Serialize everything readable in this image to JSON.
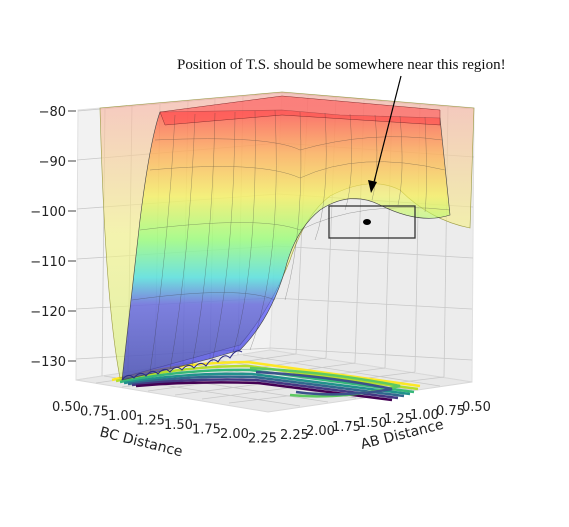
{
  "chart_data": {
    "type": "surface3d",
    "title": "",
    "annotation": "Position of T.S. should be somewhere near this region!",
    "xlabel": "AB Distance",
    "ylabel": "BC Distance",
    "zlabel": "",
    "x_ticks": [
      "0.50",
      "0.75",
      "1.00",
      "1.25",
      "1.50",
      "1.75",
      "2.00",
      "2.25"
    ],
    "y_ticks": [
      "0.50",
      "0.75",
      "1.00",
      "1.25",
      "1.50",
      "1.75",
      "2.00",
      "2.25"
    ],
    "z_ticks": [
      "−80",
      "−90",
      "−100",
      "−110",
      "−120",
      "−130"
    ],
    "xlim": [
      0.5,
      2.3
    ],
    "ylim": [
      0.5,
      2.3
    ],
    "zlim": [
      -132,
      -78
    ],
    "colormap": "jet",
    "contour_colormap": "viridis",
    "grid": true,
    "transition_state": {
      "ab": 0.95,
      "bc": 0.95,
      "energy": -102
    },
    "surface_profile": {
      "bc": [
        0.5,
        0.75,
        1.0,
        1.25,
        1.5,
        1.75,
        2.0,
        2.25
      ],
      "energy": [
        -80,
        -126,
        -131,
        -124,
        -113,
        -104,
        -101,
        -100
      ]
    }
  }
}
